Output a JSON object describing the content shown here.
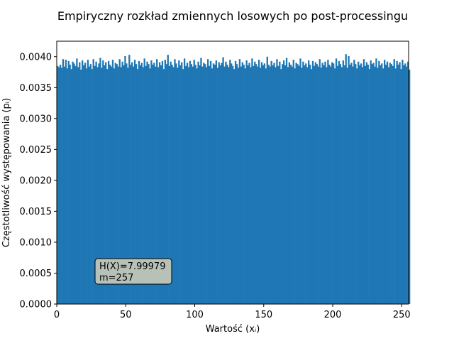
{
  "chart_data": {
    "type": "bar",
    "title": "Empiryczny rozkład zmiennych losowych po post-processingu",
    "xlabel": "Wartość (xᵢ)",
    "ylabel": "Częstotliwość występowania (pᵢ)",
    "xlim": [
      0,
      255
    ],
    "ylim": [
      0,
      0.00425
    ],
    "xticks": [
      0,
      50,
      100,
      150,
      200,
      250
    ],
    "xtick_labels": [
      "0",
      "50",
      "100",
      "150",
      "200",
      "250"
    ],
    "yticks": [
      0.0,
      0.0005,
      0.001,
      0.0015,
      0.002,
      0.0025,
      0.003,
      0.0035,
      0.004
    ],
    "ytick_labels": [
      "0.0000",
      "0.0005",
      "0.0010",
      "0.0015",
      "0.0020",
      "0.0025",
      "0.0030",
      "0.0035",
      "0.0040"
    ],
    "bin_start": 0,
    "bin_width": 1,
    "color": "#1f77b4",
    "values": [
      0.00385,
      0.00383,
      0.00387,
      0.00382,
      0.00396,
      0.00384,
      0.00395,
      0.00381,
      0.00393,
      0.00387,
      0.0038,
      0.00392,
      0.00389,
      0.00385,
      0.00397,
      0.00383,
      0.00391,
      0.00379,
      0.00394,
      0.00386,
      0.0039,
      0.00381,
      0.00395,
      0.00384,
      0.00388,
      0.0038,
      0.00396,
      0.00385,
      0.00392,
      0.00383,
      0.00389,
      0.00398,
      0.00382,
      0.00394,
      0.00386,
      0.00391,
      0.0038,
      0.00393,
      0.00387,
      0.00384,
      0.00395,
      0.00381,
      0.0039,
      0.00388,
      0.00384,
      0.00396,
      0.00383,
      0.00392,
      0.00386,
      0.00401,
      0.00389,
      0.00382,
      0.00403,
      0.00387,
      0.00391,
      0.00384,
      0.00395,
      0.00388,
      0.0038,
      0.00393,
      0.00386,
      0.0039,
      0.00383,
      0.00397,
      0.00385,
      0.00392,
      0.00388,
      0.00381,
      0.00394,
      0.00387,
      0.0039,
      0.00384,
      0.00396,
      0.00383,
      0.00391,
      0.00386,
      0.00393,
      0.0038,
      0.00395,
      0.00388,
      0.00403,
      0.00385,
      0.00392,
      0.00387,
      0.00383,
      0.00396,
      0.00389,
      0.00382,
      0.00394,
      0.00386,
      0.00391,
      0.0038,
      0.00397,
      0.00385,
      0.0039,
      0.00383,
      0.00393,
      0.00388,
      0.00384,
      0.00395,
      0.00387,
      0.00381,
      0.00392,
      0.00386,
      0.00398,
      0.00384,
      0.0039,
      0.00388,
      0.00383,
      0.00396,
      0.00385,
      0.00393,
      0.00381,
      0.00389,
      0.00387,
      0.00394,
      0.00382,
      0.00391,
      0.00386,
      0.0039,
      0.00399,
      0.00384,
      0.00392,
      0.00387,
      0.00383,
      0.00395,
      0.00389,
      0.00385,
      0.0038,
      0.00393,
      0.00388,
      0.00382,
      0.00396,
      0.00384,
      0.00391,
      0.00387,
      0.00381,
      0.00394,
      0.00386,
      0.0039,
      0.00383,
      0.00397,
      0.00385,
      0.00392,
      0.00388,
      0.00384,
      0.00395,
      0.00382,
      0.00391,
      0.00386,
      0.00389,
      0.00381,
      0.004,
      0.00387,
      0.00384,
      0.00393,
      0.00386,
      0.0039,
      0.00383,
      0.00396,
      0.00385,
      0.00392,
      0.0038,
      0.00388,
      0.00394,
      0.00386,
      0.00398,
      0.00383,
      0.00391,
      0.00387,
      0.00384,
      0.00395,
      0.00381,
      0.0039,
      0.00388,
      0.00385,
      0.00397,
      0.00382,
      0.00392,
      0.00386,
      0.00389,
      0.00383,
      0.00394,
      0.00387,
      0.0038,
      0.00393,
      0.00385,
      0.00391,
      0.00388,
      0.00384,
      0.00396,
      0.00382,
      0.0039,
      0.00386,
      0.00392,
      0.00383,
      0.00395,
      0.00387,
      0.00384,
      0.00391,
      0.00389,
      0.00381,
      0.00397,
      0.00385,
      0.00393,
      0.00388,
      0.00383,
      0.00394,
      0.00386,
      0.00404,
      0.00382,
      0.00401,
      0.00387,
      0.0039,
      0.00384,
      0.00395,
      0.00388,
      0.00381,
      0.00392,
      0.00386,
      0.00389,
      0.00383,
      0.00396,
      0.00385,
      0.00391,
      0.00387,
      0.0038,
      0.00394,
      0.00388,
      0.0039,
      0.00384,
      0.00397,
      0.00382,
      0.00393,
      0.00386,
      0.00389,
      0.00381,
      0.00395,
      0.00387,
      0.00392,
      0.00383,
      0.0039,
      0.00388,
      0.00385,
      0.00396,
      0.00381,
      0.00393,
      0.00387,
      0.00391,
      0.0038,
      0.00395,
      0.00386,
      0.00389,
      0.00384,
      0.00392,
      0.00379
    ],
    "annotation": {
      "lines": [
        "H(X)=7.99979",
        "m=257"
      ],
      "facecolor": "#b7c1b7",
      "x": 30,
      "y": 0.00052
    }
  }
}
